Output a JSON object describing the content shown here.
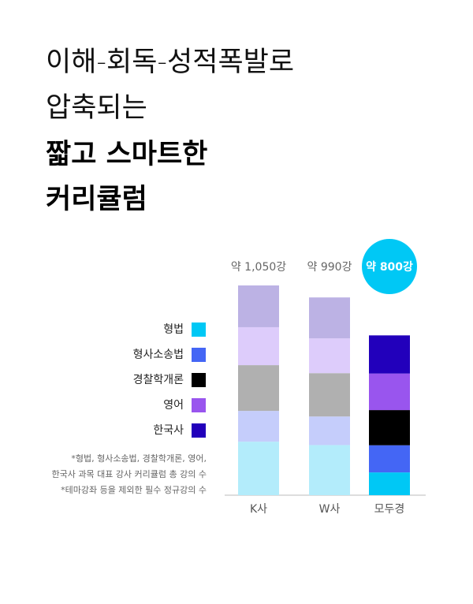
{
  "chart_data": {
    "type": "stacked_bar",
    "title_lines": [
      "이해-회독-성적폭발로",
      "압축되는"
    ],
    "headline_lines": [
      "짧고 스마트한",
      "커리큘럼"
    ],
    "categories": [
      "K사",
      "W사",
      "모두경"
    ],
    "totals": [
      1050,
      990,
      800
    ],
    "total_labels": [
      "약 1,050강",
      "약 990강",
      "약 800강"
    ],
    "series": [
      {
        "name": "형법",
        "color": "#00c8f5",
        "colors": [
          "#b3ecfb",
          "#b3ecfb",
          "#00c8f5"
        ],
        "values": [
          268,
          251,
          114
        ]
      },
      {
        "name": "형사소송법",
        "color": "#4466f5",
        "colors": [
          "#c5cdfb",
          "#c5cdfb",
          "#4466f5"
        ],
        "values": [
          154,
          143,
          136
        ]
      },
      {
        "name": "경찰학개론",
        "color": "#000000",
        "colors": [
          "#b0b0b0",
          "#b0b0b0",
          "#000000"
        ],
        "values": [
          229,
          217,
          176
        ]
      },
      {
        "name": "영어",
        "color": "#9955ee",
        "colors": [
          "#ddccfb",
          "#ddccfb",
          "#9955ee"
        ],
        "values": [
          190,
          174,
          183
        ]
      },
      {
        "name": "한국사",
        "color": "#2200bb",
        "colors": [
          "#bcb2e4",
          "#bcb2e4",
          "#2200bb"
        ],
        "values": [
          209,
          205,
          191
        ]
      }
    ],
    "notes": [
      "*형법, 형사소송법, 경찰학개론, 영어,",
      "한국사 과목 대표 강사 커리큘럼 총 강의 수",
      "*테마강좌 등을 제외한 필수 정규강의 수"
    ]
  }
}
